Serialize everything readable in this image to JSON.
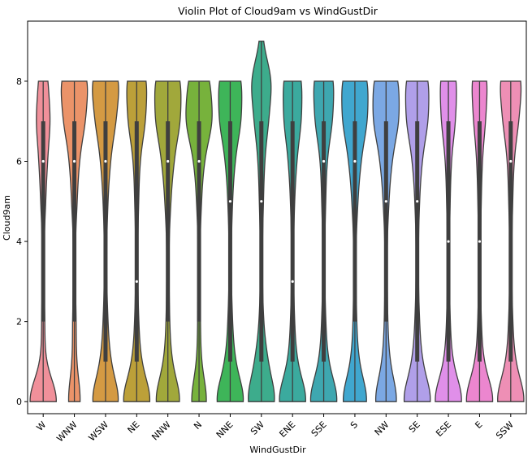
{
  "chart_data": {
    "type": "violin",
    "title": "Violin Plot of Cloud9am vs WindGustDir",
    "xlabel": "WindGustDir",
    "ylabel": "Cloud9am",
    "ylim": [
      -0.3,
      9.5
    ],
    "yticks": [
      0,
      2,
      4,
      6,
      8
    ],
    "grid": false,
    "categories": [
      "W",
      "WNW",
      "WSW",
      "NE",
      "NNW",
      "N",
      "NNE",
      "SW",
      "ENE",
      "SSE",
      "S",
      "NW",
      "SE",
      "ESE",
      "E",
      "SSW"
    ],
    "colors": [
      "#f0909a",
      "#eb9369",
      "#d49a43",
      "#bca039",
      "#a1a83b",
      "#77b23c",
      "#3eb559",
      "#3dac8c",
      "#3baa9e",
      "#3ea7b0",
      "#40a7cf",
      "#7ba8e4",
      "#b09fe9",
      "#e08fe9",
      "#ec86cf",
      "#ee8fb5"
    ],
    "medians": [
      6,
      6,
      6,
      3,
      6,
      6,
      5,
      5,
      3,
      6,
      6,
      5,
      5,
      4,
      4,
      6
    ],
    "q1": [
      2,
      2,
      1,
      1,
      2,
      2,
      1,
      1,
      1,
      1,
      2,
      2,
      1,
      1,
      1,
      1
    ],
    "q3": [
      7,
      7,
      7,
      7,
      7,
      7,
      7,
      7,
      7,
      7,
      7,
      7,
      7,
      7,
      7,
      7
    ],
    "max": [
      8,
      8,
      8,
      8,
      8,
      8,
      8,
      9,
      8,
      8,
      8,
      8,
      8,
      8,
      8,
      8
    ],
    "min": [
      0,
      0,
      0,
      0,
      0,
      0,
      0,
      0,
      0,
      0,
      0,
      0,
      0,
      0,
      0,
      0
    ]
  }
}
